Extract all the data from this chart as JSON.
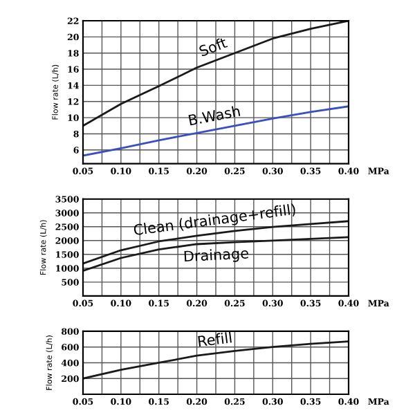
{
  "chart_data": [
    {
      "type": "line",
      "ylabel": "Flow rate (L/h)",
      "xlabel": "MPa",
      "x": [
        0.05,
        0.1,
        0.15,
        0.2,
        0.25,
        0.3,
        0.35,
        0.4
      ],
      "series": [
        {
          "name": "Soft",
          "color": "#1a1a1a",
          "values": [
            9.0,
            11.7,
            13.9,
            16.2,
            18.0,
            19.8,
            21.0,
            22.0
          ]
        },
        {
          "name": "B.Wash",
          "color": "#3a4fc0",
          "values": [
            5.3,
            6.2,
            7.2,
            8.1,
            9.0,
            9.9,
            10.7,
            11.4
          ]
        }
      ],
      "xlim": [
        0.05,
        0.4
      ],
      "ylim": [
        4.3,
        22
      ],
      "xticks": [
        {
          "value": 0.05,
          "label": "0.05"
        },
        {
          "value": 0.1,
          "label": "0.10"
        },
        {
          "value": 0.15,
          "label": "0.15"
        },
        {
          "value": 0.2,
          "label": "0.20"
        },
        {
          "value": 0.25,
          "label": "0.25"
        },
        {
          "value": 0.3,
          "label": "0.30"
        },
        {
          "value": 0.35,
          "label": "0.35"
        },
        {
          "value": 0.4,
          "label": "0.40"
        }
      ],
      "yticks": [
        6,
        8,
        10,
        12,
        14,
        16,
        18,
        20,
        22
      ],
      "grid": true
    },
    {
      "type": "line",
      "ylabel": "Flow rate (L/h)",
      "xlabel": "MPa",
      "x": [
        0.05,
        0.1,
        0.15,
        0.2,
        0.25,
        0.3,
        0.35,
        0.4
      ],
      "series": [
        {
          "name": "Clean (drainage+refill)",
          "color": "#1a1a1a",
          "values": [
            1170,
            1650,
            1970,
            2170,
            2350,
            2490,
            2600,
            2700
          ]
        },
        {
          "name": "Drainage",
          "color": "#1a1a1a",
          "values": [
            910,
            1370,
            1680,
            1870,
            1940,
            2000,
            2060,
            2120
          ]
        }
      ],
      "xlim": [
        0.05,
        0.4
      ],
      "ylim": [
        0,
        3500
      ],
      "xticks": [
        {
          "value": 0.05,
          "label": "0.05"
        },
        {
          "value": 0.1,
          "label": "0.10"
        },
        {
          "value": 0.15,
          "label": "0.15"
        },
        {
          "value": 0.2,
          "label": "0.20"
        },
        {
          "value": 0.25,
          "label": "0.25"
        },
        {
          "value": 0.3,
          "label": "0.30"
        },
        {
          "value": 0.35,
          "label": "0.35"
        },
        {
          "value": 0.4,
          "label": "0.40"
        }
      ],
      "yticks": [
        500,
        1000,
        1500,
        2000,
        2500,
        3000,
        3500
      ],
      "grid": true
    },
    {
      "type": "line",
      "ylabel": "Flow rate (L/h)",
      "xlabel": "MPa",
      "x": [
        0.05,
        0.1,
        0.15,
        0.2,
        0.25,
        0.3,
        0.35,
        0.4
      ],
      "series": [
        {
          "name": "Refill",
          "color": "#1a1a1a",
          "values": [
            200,
            310,
            400,
            490,
            550,
            600,
            640,
            670
          ]
        }
      ],
      "xlim": [
        0.05,
        0.4
      ],
      "ylim": [
        0,
        800
      ],
      "xticks": [
        {
          "value": 0.05,
          "label": "0.05"
        },
        {
          "value": 0.1,
          "label": "0.10"
        },
        {
          "value": 0.15,
          "label": "0.15"
        },
        {
          "value": 0.2,
          "label": "0.20"
        },
        {
          "value": 0.25,
          "label": "0.25"
        },
        {
          "value": 0.3,
          "label": "0.30"
        },
        {
          "value": 0.35,
          "label": "0.35"
        },
        {
          "value": 0.4,
          "label": "0.40"
        }
      ],
      "yticks": [
        200,
        400,
        600,
        800
      ],
      "grid": true
    }
  ]
}
